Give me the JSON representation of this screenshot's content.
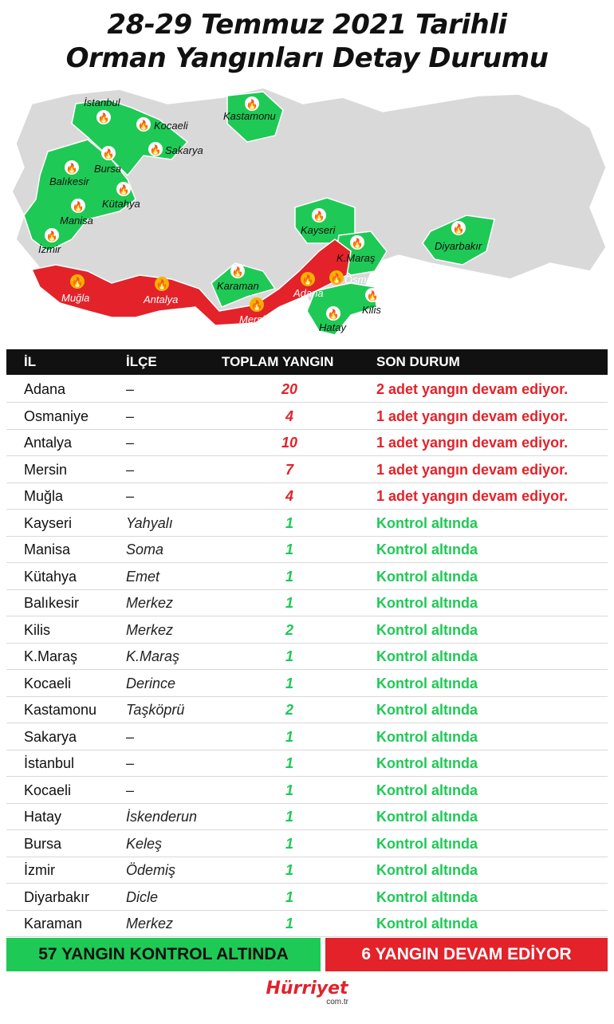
{
  "title": {
    "line1": "28-29 Temmuz 2021 Tarihli",
    "line2": "Orman Yangınları Detay Durumu"
  },
  "colors": {
    "red": "#e3222a",
    "green": "#1fc956",
    "map_base": "#d9d9d9",
    "header_bg": "#111111"
  },
  "map": {
    "labels": {
      "istanbul": "İstanbul",
      "kocaeli": "Kocaeli",
      "sakarya": "Sakarya",
      "kastamonu": "Kastamonu",
      "bursa": "Bursa",
      "balikesir": "Balıkesir",
      "kutahya": "Kütahya",
      "manisa": "Manisa",
      "izmir": "İzmir",
      "kayseri": "Kayseri",
      "kmaras": "K.Maraş",
      "diyarbakir": "Diyarbakır",
      "osmaniye": "Osmaniye",
      "adana": "Adana",
      "kilis": "Kilis",
      "hatay": "Hatay",
      "mersin": "Mersin",
      "karaman": "Karaman",
      "antalya": "Antalya",
      "mugla": "Muğla"
    },
    "icon": "fire-icon"
  },
  "table": {
    "headers": {
      "il": "İL",
      "ilce": "İLÇE",
      "toplam": "TOPLAM YANGIN",
      "son": "SON DURUM"
    },
    "rows": [
      {
        "il": "Adana",
        "ilce": "–",
        "toplam": "20",
        "son": "2 adet yangın devam ediyor.",
        "status": "red"
      },
      {
        "il": "Osmaniye",
        "ilce": "–",
        "toplam": "4",
        "son": "1 adet yangın devam ediyor.",
        "status": "red"
      },
      {
        "il": "Antalya",
        "ilce": "–",
        "toplam": "10",
        "son": "1 adet yangın devam ediyor.",
        "status": "red"
      },
      {
        "il": "Mersin",
        "ilce": "–",
        "toplam": "7",
        "son": "1 adet yangın devam ediyor.",
        "status": "red"
      },
      {
        "il": "Muğla",
        "ilce": "–",
        "toplam": "4",
        "son": "1 adet yangın devam ediyor.",
        "status": "red"
      },
      {
        "il": "Kayseri",
        "ilce": "Yahyalı",
        "toplam": "1",
        "son": "Kontrol altında",
        "status": "green"
      },
      {
        "il": "Manisa",
        "ilce": "Soma",
        "toplam": "1",
        "son": "Kontrol altında",
        "status": "green"
      },
      {
        "il": "Kütahya",
        "ilce": "Emet",
        "toplam": "1",
        "son": "Kontrol altında",
        "status": "green"
      },
      {
        "il": "Balıkesir",
        "ilce": "Merkez",
        "toplam": "1",
        "son": "Kontrol altında",
        "status": "green"
      },
      {
        "il": "Kilis",
        "ilce": "Merkez",
        "toplam": "2",
        "son": "Kontrol altında",
        "status": "green"
      },
      {
        "il": "K.Maraş",
        "ilce": "K.Maraş",
        "toplam": "1",
        "son": "Kontrol altında",
        "status": "green"
      },
      {
        "il": "Kocaeli",
        "ilce": "Derince",
        "toplam": "1",
        "son": "Kontrol altında",
        "status": "green"
      },
      {
        "il": "Kastamonu",
        "ilce": "Taşköprü",
        "toplam": "2",
        "son": "Kontrol altında",
        "status": "green"
      },
      {
        "il": "Sakarya",
        "ilce": "–",
        "toplam": "1",
        "son": "Kontrol altında",
        "status": "green"
      },
      {
        "il": "İstanbul",
        "ilce": "–",
        "toplam": "1",
        "son": "Kontrol altında",
        "status": "green"
      },
      {
        "il": "Kocaeli",
        "ilce": "–",
        "toplam": "1",
        "son": "Kontrol altında",
        "status": "green"
      },
      {
        "il": "Hatay",
        "ilce": "İskenderun",
        "toplam": "1",
        "son": "Kontrol altında",
        "status": "green"
      },
      {
        "il": "Bursa",
        "ilce": "Keleş",
        "toplam": "1",
        "son": "Kontrol altında",
        "status": "green"
      },
      {
        "il": "İzmir",
        "ilce": "Ödemiş",
        "toplam": "1",
        "son": "Kontrol altında",
        "status": "green"
      },
      {
        "il": "Diyarbakır",
        "ilce": "Dicle",
        "toplam": "1",
        "son": "Kontrol altında",
        "status": "green"
      },
      {
        "il": "Karaman",
        "ilce": "Merkez",
        "toplam": "1",
        "son": "Kontrol altında",
        "status": "green"
      }
    ]
  },
  "summary": {
    "controlled": "57 YANGIN KONTROL ALTINDA",
    "ongoing": "6 YANGIN DEVAM EDİYOR"
  },
  "logo": {
    "name": "Hürriyet",
    "domain": "com.tr"
  }
}
